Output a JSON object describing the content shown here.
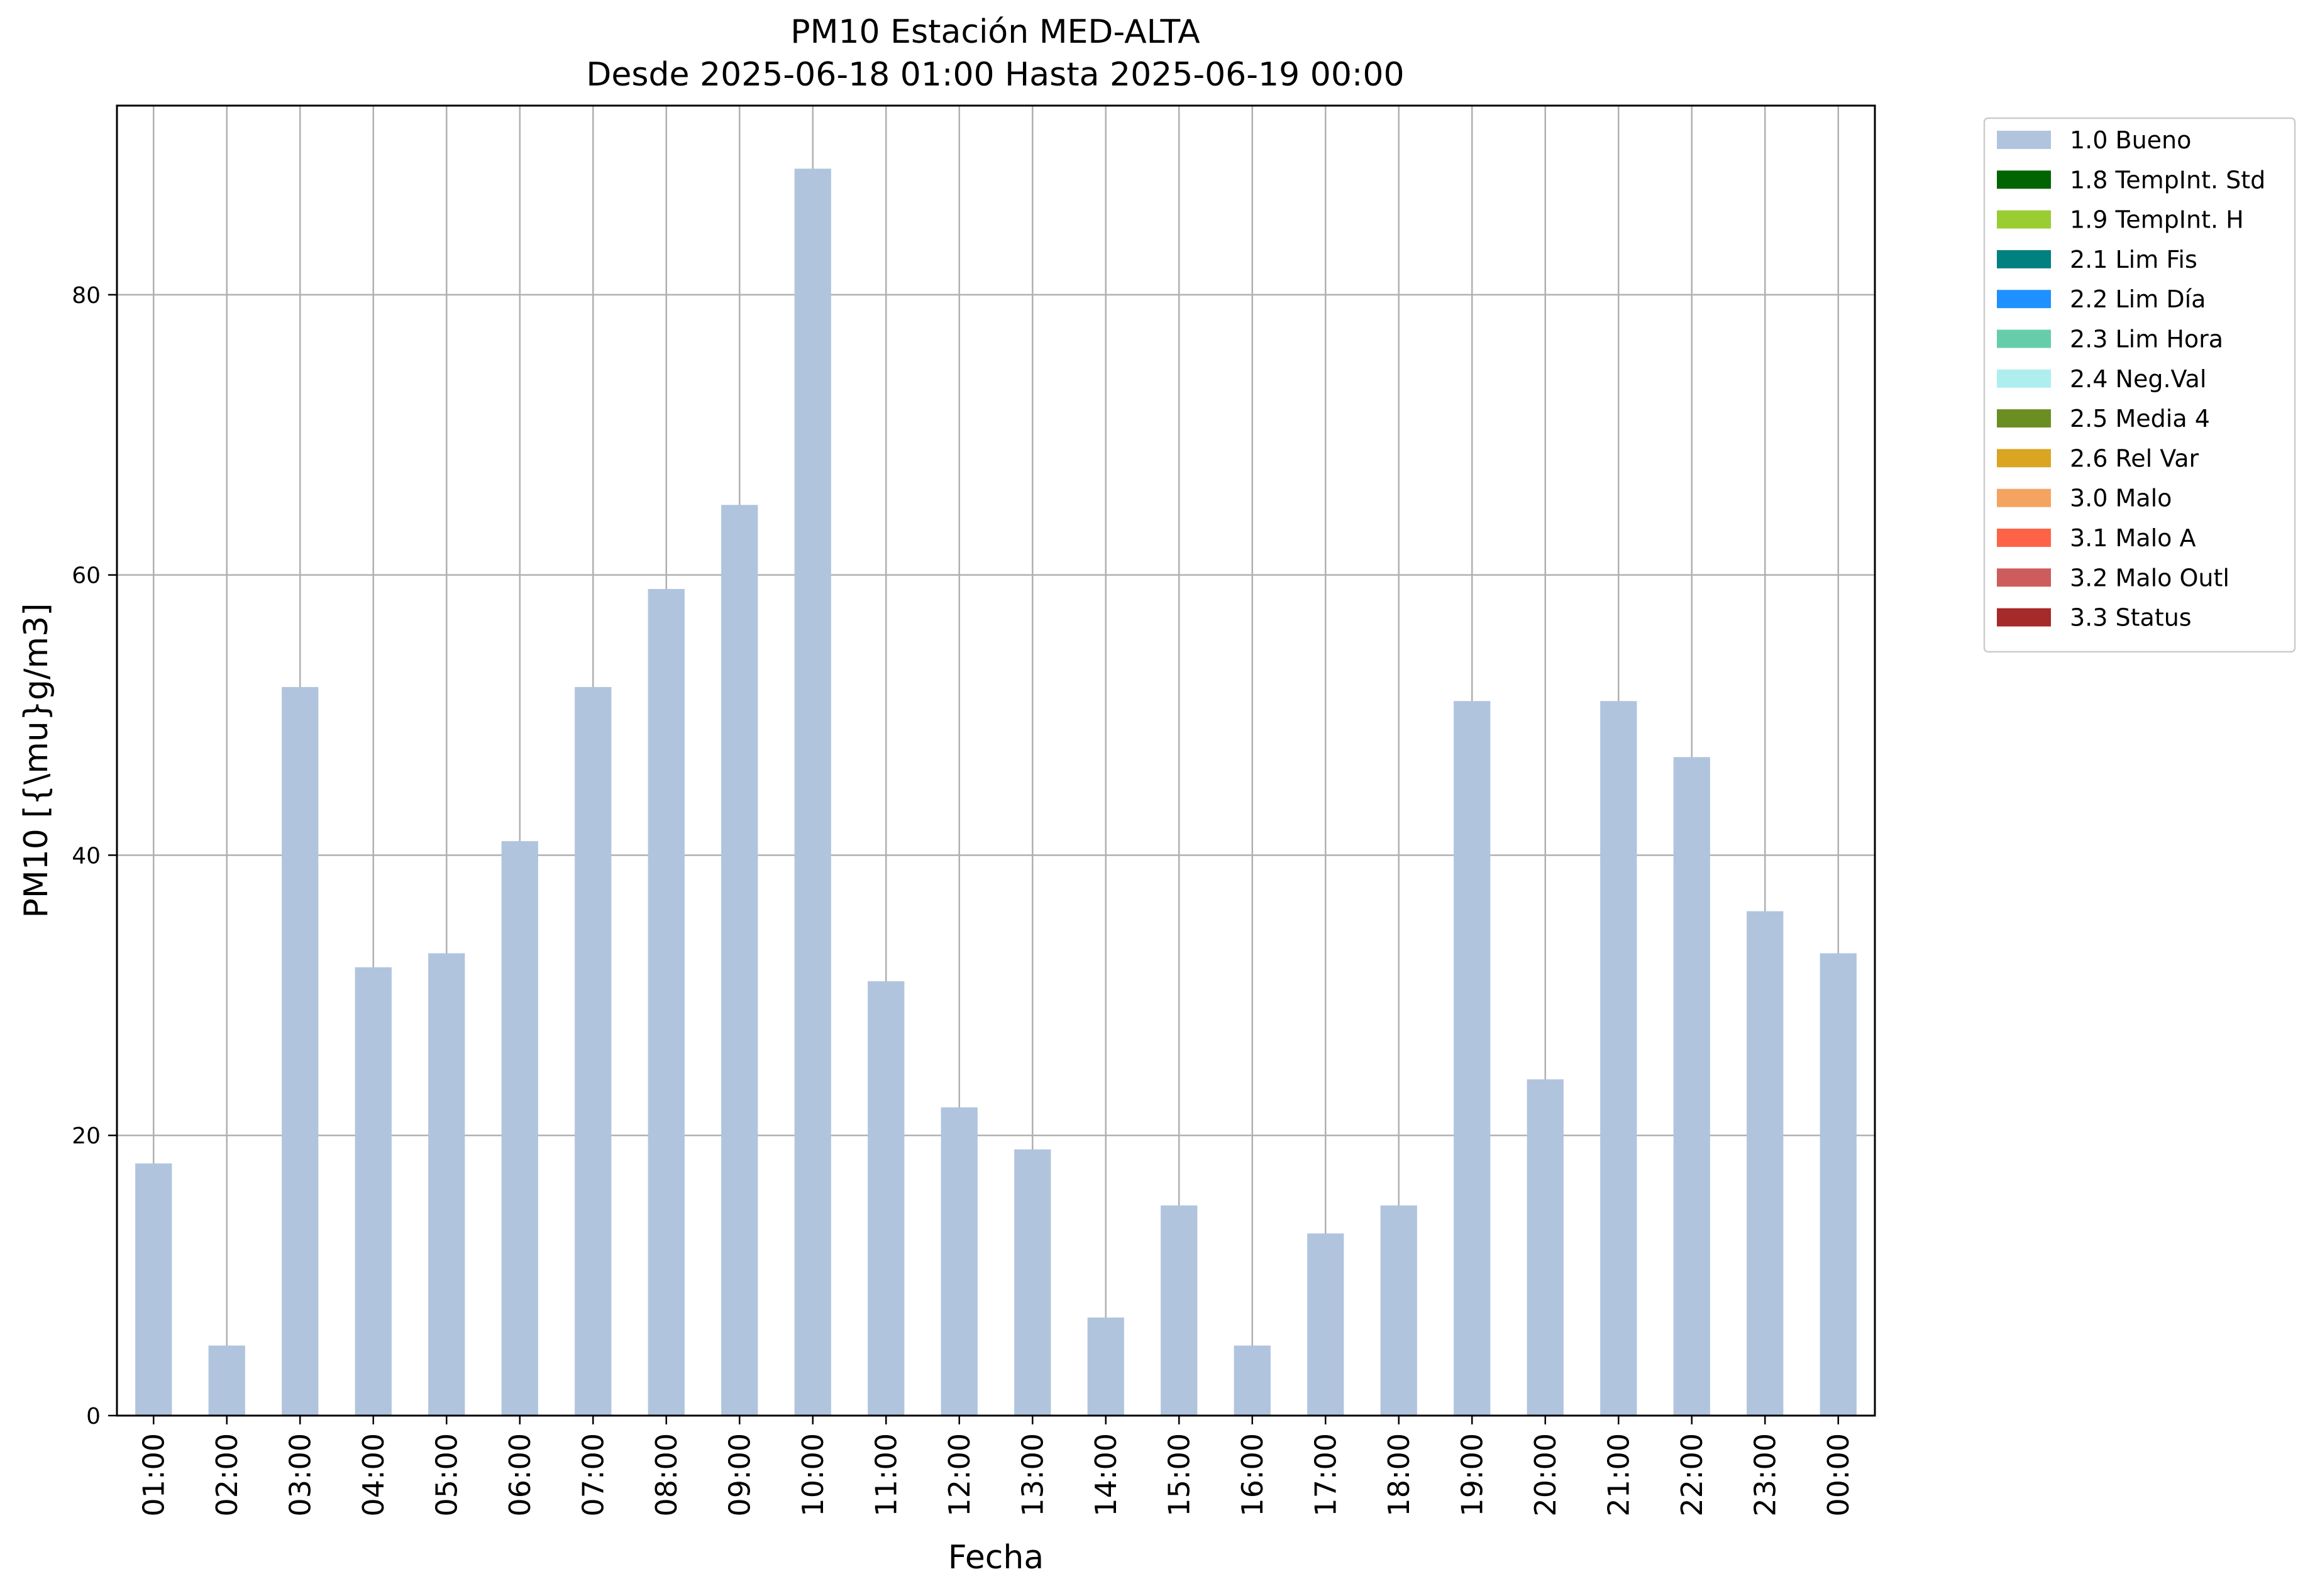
{
  "chart_data": {
    "type": "bar",
    "title": "PM10 Estación MED-ALTA",
    "subtitle": "Desde 2025-06-18 01:00 Hasta 2025-06-19 00:00",
    "xlabel": "Fecha",
    "ylabel": "PM10 [{\\mu}g/m3]",
    "ylim": [
      0,
      93.5
    ],
    "yticks": [
      0,
      20,
      40,
      60,
      80
    ],
    "grid": true,
    "legend_position": "outside-top-right",
    "categories": [
      "01:00",
      "02:00",
      "03:00",
      "04:00",
      "05:00",
      "06:00",
      "07:00",
      "08:00",
      "09:00",
      "10:00",
      "11:00",
      "12:00",
      "13:00",
      "14:00",
      "15:00",
      "16:00",
      "17:00",
      "18:00",
      "19:00",
      "20:00",
      "21:00",
      "22:00",
      "23:00",
      "00:00"
    ],
    "series": [
      {
        "name": "1.0 Bueno",
        "color": "#b0c4de",
        "values": [
          18,
          5,
          52,
          32,
          33,
          41,
          52,
          59,
          65,
          89,
          31,
          22,
          19,
          7,
          15,
          5,
          13,
          15,
          51,
          24,
          51,
          47,
          36,
          33
        ]
      }
    ],
    "legend": [
      {
        "label": "1.0 Bueno",
        "color": "#b0c4de"
      },
      {
        "label": "1.8 TempInt. Std",
        "color": "#006400"
      },
      {
        "label": "1.9 TempInt. H",
        "color": "#9acd32"
      },
      {
        "label": "2.1 Lim Fis",
        "color": "#008080"
      },
      {
        "label": "2.2 Lim Día",
        "color": "#1e90ff"
      },
      {
        "label": "2.3 Lim Hora",
        "color": "#66cdaa"
      },
      {
        "label": "2.4 Neg.Val",
        "color": "#afeeee"
      },
      {
        "label": "2.5 Media 4",
        "color": "#6b8e23"
      },
      {
        "label": "2.6 Rel Var",
        "color": "#daa520"
      },
      {
        "label": "3.0 Malo",
        "color": "#f4a460"
      },
      {
        "label": "3.1 Malo A",
        "color": "#ff6347"
      },
      {
        "label": "3.2 Malo Outl",
        "color": "#cd5c5c"
      },
      {
        "label": "3.3 Status",
        "color": "#a52a2a"
      }
    ]
  }
}
